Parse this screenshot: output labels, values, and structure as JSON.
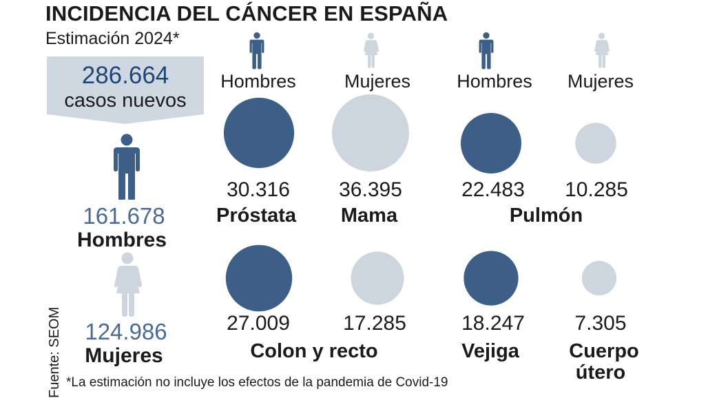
{
  "title": "INCIDENCIA DEL CÁNCER EN ESPAÑA",
  "subtitle": "Estimación 2024*",
  "total": {
    "value": "286.664",
    "label": "casos nuevos"
  },
  "men": {
    "value": "161.678",
    "label": "Hombres"
  },
  "women": {
    "value": "124.986",
    "label": "Mujeres"
  },
  "headers": [
    "Hombres",
    "Mujeres",
    "Hombres",
    "Mujeres"
  ],
  "source": "Fuente: SEOM",
  "footnote": "*La estimación no incluye los efectos de la pandemia de Covid-19",
  "colors": {
    "men": "#3d5f87",
    "women": "#cdd5df",
    "box": "#cfd7e0",
    "number": "#4a6a93"
  },
  "chart_data": {
    "type": "bubble",
    "title": "INCIDENCIA DEL CÁNCER EN ESPAÑA",
    "series": [
      "Hombres",
      "Mujeres"
    ],
    "items": [
      {
        "label": "30.316",
        "value": 30316,
        "sex": "Hombres",
        "cancer": "Próstata"
      },
      {
        "label": "36.395",
        "value": 36395,
        "sex": "Mujeres",
        "cancer": "Mama"
      },
      {
        "label": "22.483",
        "value": 22483,
        "sex": "Hombres",
        "cancer": "Pulmón"
      },
      {
        "label": "10.285",
        "value": 10285,
        "sex": "Mujeres",
        "cancer": "Pulmón"
      },
      {
        "label": "27.009",
        "value": 27009,
        "sex": "Hombres",
        "cancer": "Colon y recto"
      },
      {
        "label": "17.285",
        "value": 17285,
        "sex": "Mujeres",
        "cancer": "Colon y recto"
      },
      {
        "label": "18.247",
        "value": 18247,
        "sex": "Hombres",
        "cancer": "Vejiga"
      },
      {
        "label": "7.305",
        "value": 7305,
        "sex": "Mujeres",
        "cancer": "Cuerpo útero"
      }
    ],
    "cancer_labels": [
      "Próstata",
      "Mama",
      "Pulmón",
      "Colon y recto",
      "Vejiga",
      "Cuerpo",
      "útero"
    ]
  }
}
